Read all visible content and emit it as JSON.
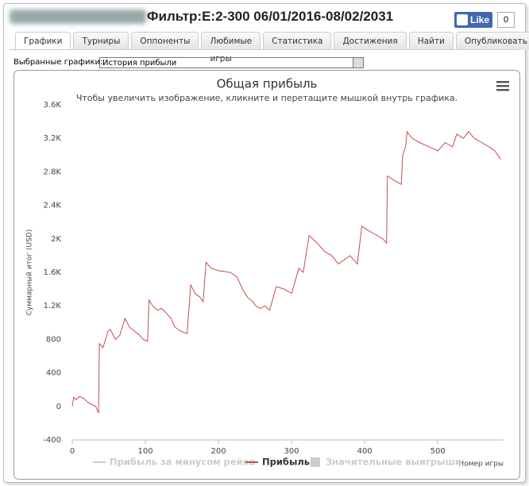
{
  "header": {
    "title": "Фильтр:E:2-300 06/01/2016-08/02/2031",
    "like": "Like",
    "like_count": 0
  },
  "tabs": [
    "Графики",
    "Турниры",
    "Оппоненты",
    "Любимые игры",
    "Статистика",
    "Достижения",
    "Найти",
    "Опубликовать"
  ],
  "active_tab": 0,
  "selector": {
    "label": "Выбранные графики:",
    "value": "История прибыли"
  },
  "chart_data": {
    "type": "line",
    "title": "Общая прибыль",
    "subtitle": "Чтобы увеличить изображение, кликните и перетащите мышкой внутрь графика.",
    "y_label": "Суммарный итог (USD)",
    "x_label": "Номер игры",
    "x": [
      0,
      2,
      5,
      10,
      15,
      20,
      25,
      32,
      36,
      37,
      42,
      49,
      52,
      59,
      65,
      72,
      78,
      85,
      92,
      97,
      103,
      105,
      110,
      117,
      122,
      128,
      135,
      140,
      148,
      157,
      162,
      168,
      175,
      179,
      183,
      190,
      200,
      216,
      225,
      233,
      240,
      247,
      251,
      258,
      263,
      270,
      279,
      290,
      300,
      310,
      316,
      324,
      335,
      345,
      355,
      364,
      372,
      380,
      390,
      396,
      405,
      415,
      425,
      430,
      431,
      440,
      450,
      452,
      456,
      458,
      465,
      475,
      488,
      500,
      510,
      520,
      526,
      535,
      542,
      550,
      560,
      570,
      578,
      586
    ],
    "series": [
      {
        "name": "Прибыль",
        "color": "#c0504d",
        "values": [
          0,
          110,
          80,
          120,
          100,
          60,
          30,
          0,
          -80,
          750,
          700,
          900,
          920,
          800,
          850,
          1050,
          950,
          900,
          850,
          800,
          780,
          1270,
          1200,
          1150,
          1170,
          1120,
          1050,
          950,
          900,
          870,
          1450,
          1350,
          1300,
          1250,
          1720,
          1650,
          1620,
          1600,
          1550,
          1400,
          1300,
          1250,
          1200,
          1170,
          1200,
          1150,
          1430,
          1400,
          1350,
          1650,
          1600,
          2040,
          1950,
          1850,
          1800,
          1700,
          1750,
          1800,
          1700,
          2150,
          2100,
          2050,
          2000,
          1950,
          2750,
          2700,
          2650,
          3000,
          3100,
          3280,
          3200,
          3150,
          3100,
          3050,
          3150,
          3100,
          3250,
          3200,
          3280,
          3200,
          3150,
          3100,
          3050,
          2950
        ]
      }
    ],
    "legend_inactive": [
      {
        "name": "Прибыль за минусом рейка",
        "symbol": "line"
      },
      {
        "name": "Значительные выигрыши",
        "symbol": "square"
      }
    ],
    "xlim": [
      0,
      590
    ],
    "xticks": [
      0,
      100,
      200,
      300,
      400,
      500
    ],
    "ylim": [
      -400,
      3600
    ],
    "yticks": [
      -400,
      0,
      400,
      800,
      {
        "value": 1200,
        "label": "1.2K"
      },
      {
        "value": 1600,
        "label": "1.6K"
      },
      {
        "value": 2000,
        "label": "2K"
      },
      {
        "value": 2400,
        "label": "2.4K"
      },
      {
        "value": 2800,
        "label": "2.8K"
      },
      {
        "value": 3200,
        "label": "3.2K"
      },
      {
        "value": 3600,
        "label": "3.6K"
      }
    ],
    "grid": false
  }
}
